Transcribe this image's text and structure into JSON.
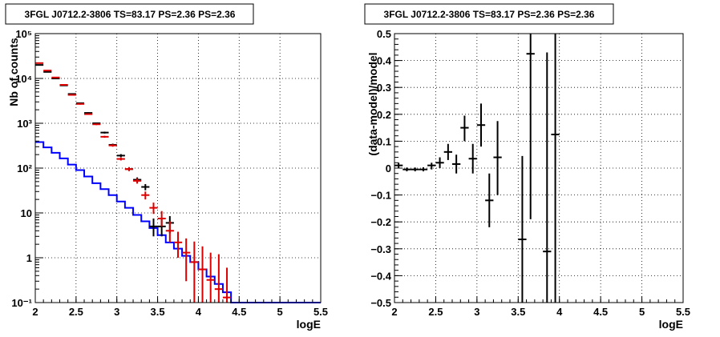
{
  "chart_data": [
    {
      "type": "histogram",
      "title": "3FGL J0712.2-3806 TS=83.17 PS=2.36 PS=2.36",
      "xlabel": "logE",
      "ylabel": "Nb of counts",
      "xlim": [
        2,
        5.5
      ],
      "ylim": [
        0.1,
        100000
      ],
      "yscale": "log",
      "grid": true,
      "x_ticks": [
        "2",
        "2.5",
        "3",
        "3.5",
        "4",
        "4.5",
        "5",
        "5.5"
      ],
      "y_ticks": [
        "10⁻¹",
        "1",
        "10",
        "10²",
        "10³",
        "10⁴",
        "10⁵"
      ],
      "colors": {
        "model": "#0000ff",
        "data_black": "#000000",
        "data_red": "#dd0000"
      },
      "model_step": {
        "edges": [
          2.0,
          2.1,
          2.2,
          2.3,
          2.4,
          2.5,
          2.6,
          2.7,
          2.8,
          2.9,
          3.0,
          3.1,
          3.2,
          3.3,
          3.4,
          3.5,
          3.6,
          3.7,
          3.8,
          3.9,
          4.0,
          4.1,
          4.2,
          4.3,
          4.4,
          5.5
        ],
        "values": [
          380,
          290,
          220,
          165,
          120,
          90,
          65,
          46,
          34,
          25,
          18,
          13,
          9,
          6.5,
          4.6,
          3.2,
          2.2,
          1.6,
          1.1,
          0.8,
          0.55,
          0.38,
          0.26,
          0.17,
          0.1
        ]
      },
      "data_black": [
        {
          "x": 2.05,
          "y": 20000,
          "lo": 19500,
          "hi": 20500
        },
        {
          "x": 2.15,
          "y": 14000,
          "lo": 13600,
          "hi": 14400
        },
        {
          "x": 2.25,
          "y": 10000,
          "lo": 9700,
          "hi": 10300
        },
        {
          "x": 2.35,
          "y": 7000,
          "lo": 6800,
          "hi": 7200
        },
        {
          "x": 2.45,
          "y": 4500,
          "lo": 4350,
          "hi": 4650
        },
        {
          "x": 2.55,
          "y": 2800,
          "lo": 2700,
          "hi": 2900
        },
        {
          "x": 2.65,
          "y": 1700,
          "lo": 1640,
          "hi": 1760
        },
        {
          "x": 2.75,
          "y": 1000,
          "lo": 960,
          "hi": 1040
        },
        {
          "x": 2.85,
          "y": 620,
          "lo": 590,
          "hi": 650
        },
        {
          "x": 2.95,
          "y": 330,
          "lo": 310,
          "hi": 350
        },
        {
          "x": 3.05,
          "y": 190,
          "lo": 175,
          "hi": 205
        },
        {
          "x": 3.15,
          "y": 95,
          "lo": 86,
          "hi": 105
        },
        {
          "x": 3.25,
          "y": 55,
          "lo": 48,
          "hi": 62
        },
        {
          "x": 3.35,
          "y": 38,
          "lo": 32,
          "hi": 44
        },
        {
          "x": 3.45,
          "y": 5,
          "lo": 3,
          "hi": 7.5
        },
        {
          "x": 3.55,
          "y": 5,
          "lo": 3,
          "hi": 7.5
        },
        {
          "x": 3.65,
          "y": 6,
          "lo": 3.5,
          "hi": 8.5
        }
      ],
      "data_red": [
        {
          "x": 2.05,
          "y": 22000,
          "lo": 21500,
          "hi": 22500
        },
        {
          "x": 2.15,
          "y": 15000,
          "lo": 14600,
          "hi": 15400
        },
        {
          "x": 2.25,
          "y": 10500,
          "lo": 10200,
          "hi": 10800
        },
        {
          "x": 2.35,
          "y": 7200,
          "lo": 7000,
          "hi": 7400
        },
        {
          "x": 2.45,
          "y": 4300,
          "lo": 4150,
          "hi": 4450
        },
        {
          "x": 2.55,
          "y": 2700,
          "lo": 2600,
          "hi": 2800
        },
        {
          "x": 2.65,
          "y": 1600,
          "lo": 1540,
          "hi": 1660
        },
        {
          "x": 2.75,
          "y": 950,
          "lo": 910,
          "hi": 990
        },
        {
          "x": 2.85,
          "y": 500,
          "lo": 475,
          "hi": 525
        },
        {
          "x": 2.95,
          "y": 320,
          "lo": 300,
          "hi": 340
        },
        {
          "x": 3.05,
          "y": 160,
          "lo": 148,
          "hi": 172
        },
        {
          "x": 3.15,
          "y": 95,
          "lo": 86,
          "hi": 104
        },
        {
          "x": 3.25,
          "y": 52,
          "lo": 45,
          "hi": 59
        },
        {
          "x": 3.35,
          "y": 25,
          "lo": 20,
          "hi": 30
        },
        {
          "x": 3.45,
          "y": 13,
          "lo": 9.5,
          "hi": 17
        },
        {
          "x": 3.55,
          "y": 7.5,
          "lo": 5,
          "hi": 11
        },
        {
          "x": 3.65,
          "y": 4,
          "lo": 2.2,
          "hi": 6.5
        },
        {
          "x": 3.75,
          "y": 2.2,
          "lo": 1,
          "hi": 3.8
        },
        {
          "x": 3.85,
          "y": 1.3,
          "lo": 0.3,
          "hi": 2.7
        },
        {
          "x": 3.95,
          "y": 0.8,
          "lo": 0.1,
          "hi": 2.3
        },
        {
          "x": 4.05,
          "y": 0.55,
          "lo": 0.1,
          "hi": 1.8
        },
        {
          "x": 4.15,
          "y": 0.32,
          "lo": 0.1,
          "hi": 1.3
        },
        {
          "x": 4.25,
          "y": 0.2,
          "lo": 0.1,
          "hi": 1.2
        },
        {
          "x": 4.35,
          "y": 0.13,
          "lo": 0.1,
          "hi": 0.6
        }
      ]
    },
    {
      "type": "scatter",
      "title": "3FGL J0712.2-3806 TS=83.17 PS=2.36 PS=2.36",
      "xlabel": "logE",
      "ylabel": "(data-model)/model",
      "xlim": [
        2,
        5.5
      ],
      "ylim": [
        -0.5,
        0.5
      ],
      "grid": true,
      "x_ticks": [
        "2",
        "2.5",
        "3",
        "3.5",
        "4",
        "4.5",
        "5",
        "5.5"
      ],
      "y_ticks": [
        "−0.5",
        "−0.4",
        "−0.3",
        "−0.2",
        "−0.1",
        "0",
        "0.1",
        "0.2",
        "0.3",
        "0.4",
        "0.5"
      ],
      "points": [
        {
          "x": 2.05,
          "y": 0.01,
          "lo": 0.0,
          "hi": 0.02
        },
        {
          "x": 2.15,
          "y": -0.005,
          "lo": -0.012,
          "hi": 0.002
        },
        {
          "x": 2.25,
          "y": -0.005,
          "lo": -0.012,
          "hi": 0.002
        },
        {
          "x": 2.35,
          "y": -0.005,
          "lo": -0.012,
          "hi": 0.003
        },
        {
          "x": 2.45,
          "y": 0.01,
          "lo": -0.005,
          "hi": 0.02
        },
        {
          "x": 2.55,
          "y": 0.02,
          "lo": 0.0,
          "hi": 0.04
        },
        {
          "x": 2.65,
          "y": 0.06,
          "lo": 0.03,
          "hi": 0.09
        },
        {
          "x": 2.75,
          "y": 0.015,
          "lo": -0.02,
          "hi": 0.05
        },
        {
          "x": 2.85,
          "y": 0.15,
          "lo": 0.1,
          "hi": 0.195
        },
        {
          "x": 2.95,
          "y": 0.035,
          "lo": -0.02,
          "hi": 0.09
        },
        {
          "x": 3.05,
          "y": 0.16,
          "lo": 0.08,
          "hi": 0.24
        },
        {
          "x": 3.15,
          "y": -0.12,
          "lo": -0.22,
          "hi": -0.02
        },
        {
          "x": 3.25,
          "y": 0.04,
          "lo": -0.1,
          "hi": 0.175
        },
        {
          "x": 3.55,
          "y": -0.265,
          "lo": -0.5,
          "hi": 0.045
        },
        {
          "x": 3.65,
          "y": 0.425,
          "lo": -0.19,
          "hi": 0.5
        },
        {
          "x": 3.85,
          "y": -0.31,
          "lo": -0.5,
          "hi": 0.43
        },
        {
          "x": 3.95,
          "y": 0.125,
          "lo": -0.5,
          "hi": 0.5
        }
      ]
    }
  ]
}
